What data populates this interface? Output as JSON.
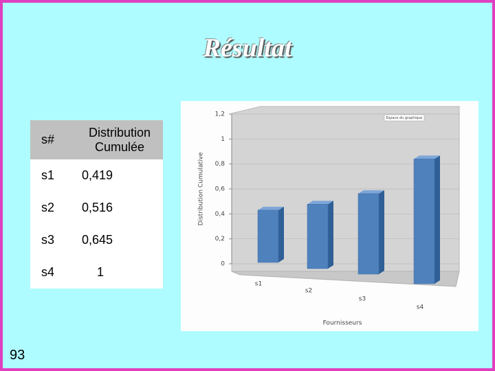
{
  "title": "Résultat",
  "page_number": "93",
  "table": {
    "header": [
      "s#",
      "Distribution Cumulée"
    ],
    "rows": [
      [
        "s1",
        "0,419"
      ],
      [
        "s2",
        "0,516"
      ],
      [
        "s3",
        "0,645"
      ],
      [
        "s4",
        "1"
      ]
    ]
  },
  "chart_data": {
    "type": "bar",
    "annotation": "Espace du graphique",
    "x_label": "Fournisseurs",
    "y_label": "Distribution Cumulative",
    "categories": [
      "s1",
      "s2",
      "s3",
      "s4"
    ],
    "values": [
      0.419,
      0.516,
      0.645,
      1
    ],
    "color": "#4f81bd",
    "ylim": [
      0,
      1.2
    ],
    "yticks": [
      0,
      {
        "value": 0.2,
        "label": "0,2"
      },
      {
        "value": 0.4,
        "label": "0,4"
      },
      {
        "value": 0.6,
        "label": "0,6"
      },
      {
        "value": 0.8,
        "label": "0,8"
      },
      1,
      {
        "value": 1.2,
        "label": "1,2"
      }
    ],
    "grid": true
  }
}
